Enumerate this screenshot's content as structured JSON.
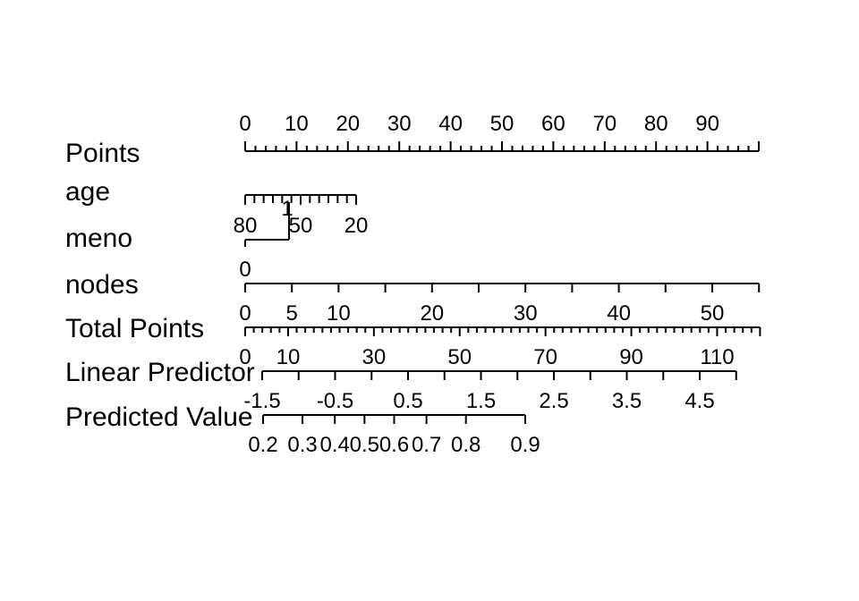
{
  "chart_data": {
    "type": "nomogram",
    "rows": [
      {
        "name": "Points",
        "min": 0,
        "max": 100,
        "major": [
          0,
          10,
          20,
          30,
          40,
          50,
          60,
          70,
          80,
          90
        ],
        "minor_step": 2,
        "labels": [
          "0",
          "10",
          "20",
          "30",
          "40",
          "50",
          "60",
          "70",
          "80",
          "90"
        ]
      },
      {
        "name": "age",
        "min": 20,
        "max": 80,
        "reversed": true,
        "major": [
          80,
          50,
          20
        ],
        "minor_step": 5,
        "labels": [
          "80",
          "50",
          "20"
        ]
      },
      {
        "name": "meno",
        "levels": [
          "0",
          "1"
        ]
      },
      {
        "name": "nodes",
        "min": 0,
        "max": 55,
        "major": [
          0,
          5,
          10,
          20,
          30,
          40,
          50
        ],
        "minor_step": 5,
        "labels": [
          "0",
          "5",
          "10",
          "20",
          "30",
          "40",
          "50"
        ]
      },
      {
        "name": "Total Points",
        "min": 0,
        "max": 120,
        "major": [
          0,
          10,
          30,
          50,
          70,
          90,
          110
        ],
        "minor_step": 2,
        "labels": [
          "0",
          "10",
          "30",
          "50",
          "70",
          "90",
          "110"
        ]
      },
      {
        "name": "Linear Predictor",
        "min": -1.5,
        "max": 5.0,
        "major": [
          -1.5,
          -0.5,
          0.5,
          1.5,
          2.5,
          3.5,
          4.5
        ],
        "minor_step": 0.5,
        "labels": [
          "-1.5",
          "-0.5",
          "0.5",
          "1.5",
          "2.5",
          "3.5",
          "4.5"
        ]
      },
      {
        "name": "Predicted Value",
        "major": [
          0.2,
          0.3,
          0.4,
          0.5,
          0.6,
          0.7,
          0.8,
          0.9
        ],
        "labels": [
          "0.2",
          "0.3",
          "0.4",
          "0.5",
          "0.6",
          "0.7",
          "0.8",
          "0.9"
        ]
      }
    ]
  }
}
